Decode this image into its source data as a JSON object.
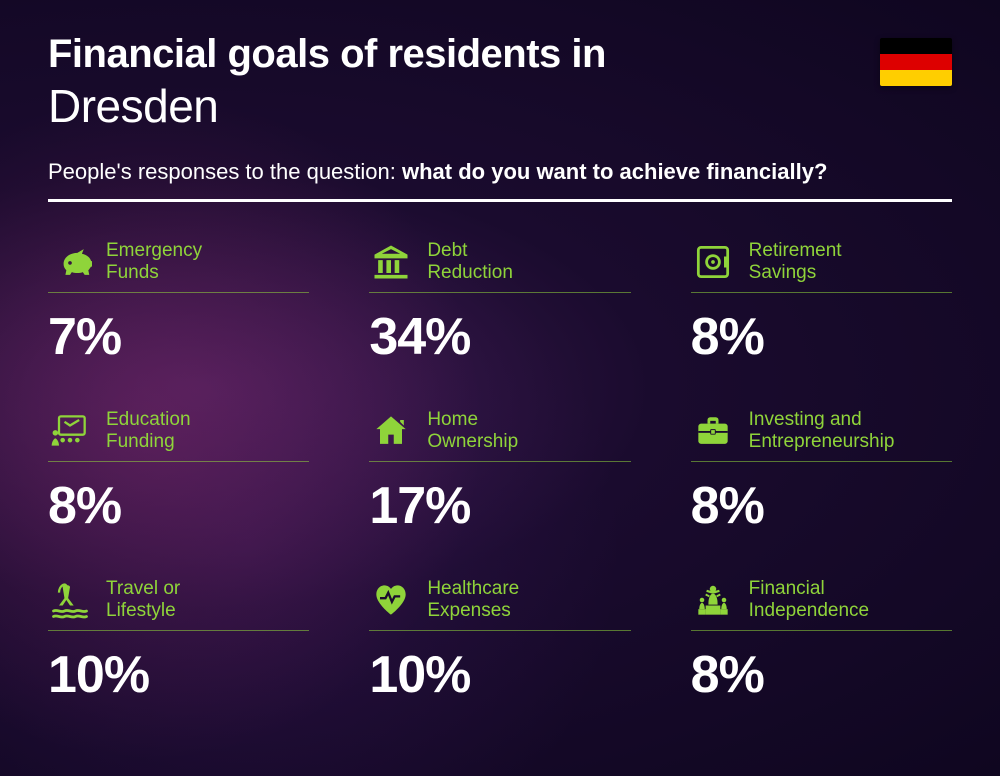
{
  "header": {
    "title_prefix": "Financial goals of residents in",
    "city": "Dresden",
    "subtitle_prefix": "People's responses to the question: ",
    "subtitle_bold": "what do you want to achieve financially?"
  },
  "flag": {
    "stripes": [
      "#000000",
      "#dd0000",
      "#ffce00"
    ]
  },
  "accent_color": "#8fd43a",
  "text_color": "#ffffff",
  "items": [
    {
      "label_line1": "Emergency",
      "label_line2": "Funds",
      "value": "7%",
      "icon": "piggy"
    },
    {
      "label_line1": "Debt",
      "label_line2": "Reduction",
      "value": "34%",
      "icon": "bank"
    },
    {
      "label_line1": "Retirement",
      "label_line2": "Savings",
      "value": "8%",
      "icon": "safe"
    },
    {
      "label_line1": "Education",
      "label_line2": "Funding",
      "value": "8%",
      "icon": "education"
    },
    {
      "label_line1": "Home",
      "label_line2": "Ownership",
      "value": "17%",
      "icon": "home"
    },
    {
      "label_line1": "Investing and",
      "label_line2": "Entrepreneurship",
      "value": "8%",
      "icon": "briefcase"
    },
    {
      "label_line1": "Travel or",
      "label_line2": "Lifestyle",
      "value": "10%",
      "icon": "travel"
    },
    {
      "label_line1": "Healthcare",
      "label_line2": "Expenses",
      "value": "10%",
      "icon": "health"
    },
    {
      "label_line1": "Financial",
      "label_line2": "Independence",
      "value": "8%",
      "icon": "independence"
    }
  ]
}
